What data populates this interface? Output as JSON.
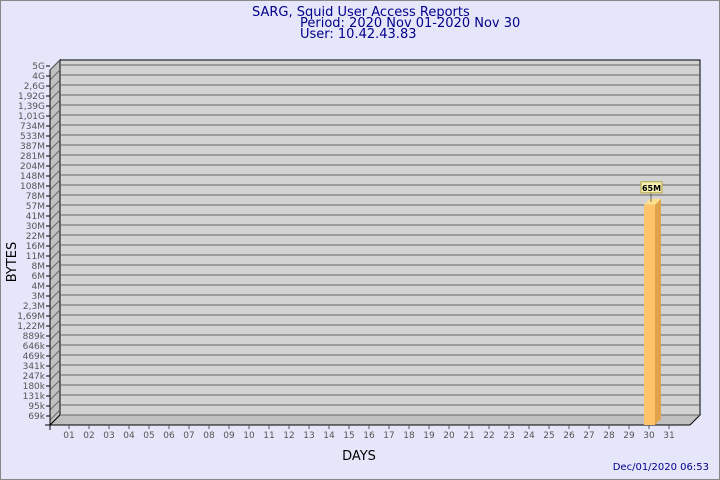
{
  "chart_data": {
    "type": "bar",
    "title": "SARG, Squid User Access Reports",
    "subtitle": [
      "Period: 2020 Nov 01-2020 Nov 30",
      "User: 10.42.43.83"
    ],
    "xlabel": "DAYS",
    "ylabel": "BYTES",
    "footer": "Dec/01/2020 06:53",
    "categories": [
      "01",
      "02",
      "03",
      "04",
      "05",
      "06",
      "07",
      "08",
      "09",
      "10",
      "11",
      "12",
      "13",
      "14",
      "15",
      "16",
      "17",
      "18",
      "19",
      "20",
      "21",
      "22",
      "23",
      "24",
      "25",
      "26",
      "27",
      "28",
      "29",
      "30",
      "31"
    ],
    "y_tick_labels": [
      "5G",
      "4G",
      "2,6G",
      "1,92G",
      "1,39G",
      "1,01G",
      "734M",
      "533M",
      "387M",
      "281M",
      "204M",
      "148M",
      "108M",
      "78M",
      "57M",
      "41M",
      "30M",
      "22M",
      "16M",
      "11M",
      "8M",
      "6M",
      "4M",
      "3M",
      "2,3M",
      "1,69M",
      "1,22M",
      "889k",
      "646k",
      "469k",
      "341k",
      "247k",
      "180k",
      "131k",
      "95k",
      "69k"
    ],
    "y_tick_values": [
      5000000000,
      4000000000,
      2600000000,
      1920000000,
      1390000000,
      1010000000,
      734000000,
      533000000,
      387000000,
      281000000,
      204000000,
      148000000,
      108000000,
      78000000,
      57000000,
      41000000,
      30000000,
      22000000,
      16000000,
      11000000,
      8000000,
      6000000,
      4000000,
      3000000,
      2300000,
      1690000,
      1220000,
      889000,
      646000,
      469000,
      341000,
      247000,
      180000,
      131000,
      95000,
      69000
    ],
    "y_scale": "log",
    "grid": true,
    "bars": [
      {
        "day": "30",
        "value": 65000000,
        "label": "65M"
      }
    ],
    "colors": {
      "background": "#e6e6fa",
      "plot": "#d3d3d3",
      "bar": "#ffc469",
      "bar_side": "#e0a24a",
      "bar_top": "#ffe08a",
      "text": "#00008b",
      "label_bg": "#f5f0b0"
    }
  }
}
